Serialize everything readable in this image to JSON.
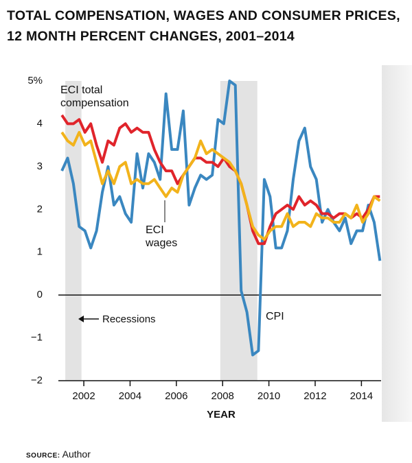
{
  "chart_data": {
    "type": "line",
    "title": "TOTAL COMPENSATION, WAGES AND CONSUMER PRICES, 12 MONTH PERCENT CHANGES, 2001–2014",
    "xlabel": "YEAR",
    "source": {
      "label": "SOURCE:",
      "text": "Author"
    },
    "x": [
      2001.05,
      2001.3,
      2001.55,
      2001.8,
      2002.05,
      2002.3,
      2002.55,
      2002.8,
      2003.05,
      2003.3,
      2003.55,
      2003.8,
      2004.05,
      2004.3,
      2004.55,
      2004.8,
      2005.05,
      2005.3,
      2005.55,
      2005.8,
      2006.05,
      2006.3,
      2006.55,
      2006.8,
      2007.05,
      2007.3,
      2007.55,
      2007.8,
      2008.05,
      2008.3,
      2008.55,
      2008.8,
      2009.05,
      2009.3,
      2009.55,
      2009.8,
      2010.05,
      2010.3,
      2010.55,
      2010.8,
      2011.05,
      2011.3,
      2011.55,
      2011.8,
      2012.05,
      2012.3,
      2012.55,
      2012.8,
      2013.05,
      2013.3,
      2013.55,
      2013.8,
      2014.05,
      2014.3,
      2014.55,
      2014.8
    ],
    "series": [
      {
        "name": "CPI",
        "color": "#3a87c0",
        "values": [
          2.9,
          3.2,
          2.6,
          1.6,
          1.5,
          1.1,
          1.5,
          2.4,
          3.0,
          2.1,
          2.3,
          1.9,
          1.7,
          3.3,
          2.5,
          3.3,
          3.1,
          2.7,
          4.7,
          3.4,
          3.4,
          4.3,
          2.1,
          2.5,
          2.8,
          2.7,
          2.8,
          4.1,
          4.0,
          5.0,
          4.9,
          0.1,
          -0.4,
          -1.4,
          -1.3,
          2.7,
          2.3,
          1.1,
          1.1,
          1.5,
          2.7,
          3.6,
          3.9,
          3.0,
          2.7,
          1.7,
          2.0,
          1.7,
          1.5,
          1.8,
          1.2,
          1.5,
          1.5,
          2.1,
          1.7,
          0.8
        ]
      },
      {
        "name": "ECI total compensation",
        "color": "#e0242b",
        "values": [
          4.2,
          4.0,
          4.0,
          4.1,
          3.8,
          4.0,
          3.5,
          3.1,
          3.6,
          3.5,
          3.9,
          4.0,
          3.8,
          3.9,
          3.8,
          3.8,
          3.4,
          3.1,
          2.9,
          2.9,
          2.6,
          2.8,
          3.0,
          3.2,
          3.2,
          3.1,
          3.1,
          3.0,
          3.2,
          3.0,
          2.9,
          2.6,
          2.1,
          1.5,
          1.2,
          1.2,
          1.6,
          1.9,
          2.0,
          2.1,
          2.0,
          2.3,
          2.1,
          2.2,
          2.1,
          1.9,
          1.9,
          1.8,
          1.9,
          1.9,
          1.8,
          1.9,
          1.8,
          2.0,
          2.3,
          2.3
        ]
      },
      {
        "name": "ECI wages",
        "color": "#f2b31b",
        "values": [
          3.8,
          3.6,
          3.5,
          3.8,
          3.5,
          3.6,
          3.1,
          2.6,
          2.9,
          2.6,
          3.0,
          3.1,
          2.6,
          2.7,
          2.6,
          2.6,
          2.7,
          2.5,
          2.3,
          2.5,
          2.4,
          2.8,
          3.0,
          3.2,
          3.6,
          3.3,
          3.4,
          3.3,
          3.2,
          3.1,
          2.9,
          2.6,
          2.1,
          1.6,
          1.4,
          1.3,
          1.5,
          1.6,
          1.6,
          1.9,
          1.6,
          1.7,
          1.7,
          1.6,
          1.9,
          1.8,
          1.8,
          1.7,
          1.7,
          1.9,
          1.8,
          2.1,
          1.7,
          1.9,
          2.3,
          2.2
        ]
      }
    ],
    "recessions": [
      [
        2001.2,
        2001.9
      ],
      [
        2007.9,
        2009.5
      ]
    ],
    "recession_label": "Recessions",
    "xlim": [
      2000.9,
      2014.85
    ],
    "xticks": [
      2002,
      2004,
      2006,
      2008,
      2010,
      2012,
      2014
    ],
    "ylim": [
      -2,
      5
    ],
    "yticks": [
      {
        "value": -2,
        "label": "−2"
      },
      {
        "value": -1,
        "label": "−1"
      },
      0,
      1,
      2,
      3,
      4,
      {
        "value": 5,
        "label": "5%"
      }
    ],
    "grid": false
  }
}
